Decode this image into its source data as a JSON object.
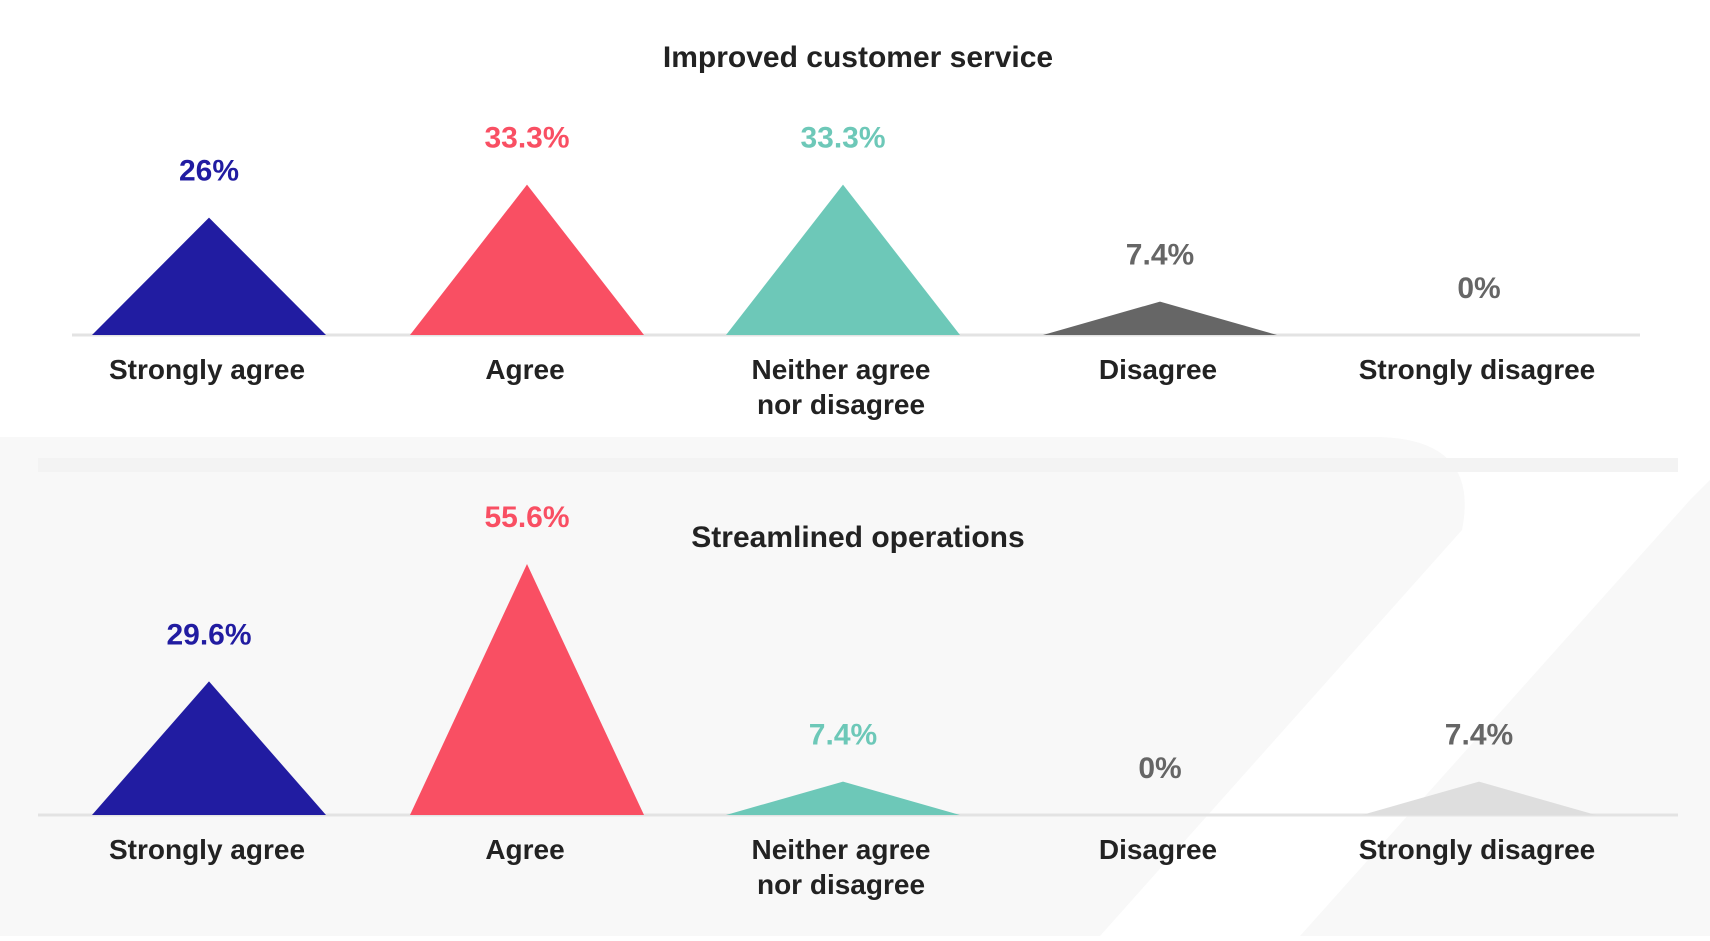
{
  "chart_data": [
    {
      "type": "bar",
      "mark": "triangle",
      "title": "Improved customer service",
      "categories": [
        "Strongly agree",
        "Agree",
        "Neither agree nor disagree",
        "Disagree",
        "Strongly disagree"
      ],
      "values": [
        26,
        33.3,
        33.3,
        7.4,
        0
      ],
      "value_labels": [
        "26%",
        "33.3%",
        "33.3%",
        "7.4%",
        "0%"
      ],
      "colors": [
        "#211CA1",
        "#F94F63",
        "#6DC8B8",
        "#666666",
        "#666666"
      ],
      "label_colors": [
        "#211CA1",
        "#F94F63",
        "#6DC8B8",
        "#666666",
        "#666666"
      ]
    },
    {
      "type": "bar",
      "mark": "triangle",
      "title": "Streamlined operations",
      "categories": [
        "Strongly agree",
        "Agree",
        "Neither agree nor disagree",
        "Disagree",
        "Strongly disagree"
      ],
      "values": [
        29.6,
        55.6,
        7.4,
        0,
        7.4
      ],
      "value_labels": [
        "29.6%",
        "55.6%",
        "7.4%",
        "0%",
        "7.4%"
      ],
      "colors": [
        "#211CA1",
        "#F94F63",
        "#6DC8B8",
        "#666666",
        "#DEDEDE"
      ],
      "label_colors": [
        "#211CA1",
        "#F94F63",
        "#6DC8B8",
        "#666666",
        "#666666"
      ]
    }
  ],
  "category_display": [
    [
      "Strongly agree"
    ],
    [
      "Agree"
    ],
    [
      "Neither agree",
      "nor disagree"
    ],
    [
      "Disagree"
    ],
    [
      "Strongly disagree"
    ]
  ],
  "colors": {
    "axis": "#E3E3E3",
    "category_label": "#222222",
    "title": "#222222",
    "band": "#F3F3F3",
    "background_shape": "#F8F8F8"
  }
}
